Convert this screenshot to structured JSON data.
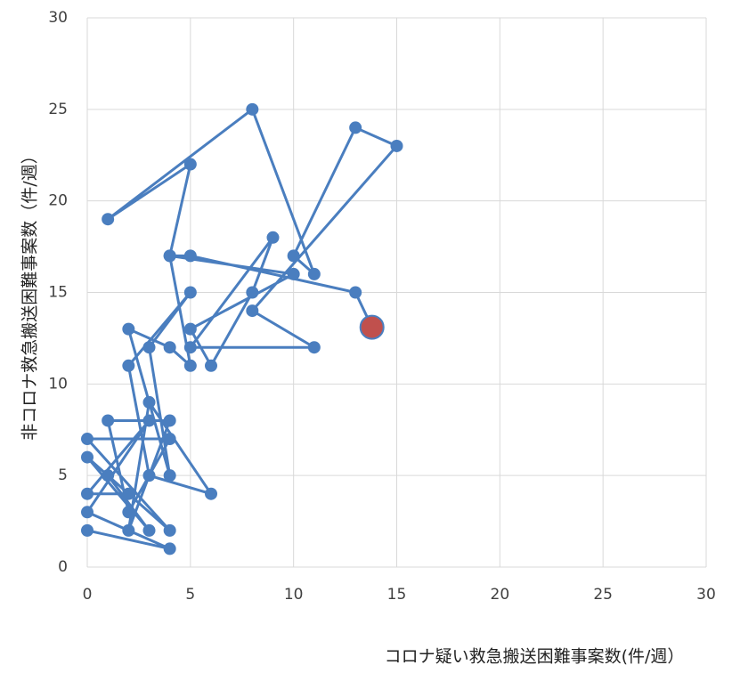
{
  "chart_data": {
    "type": "scatter-line",
    "x_label": "コロナ疑い救急搬送困難事案数(件/週）",
    "y_label": "非コロナ救急搬送困難事案数（件/週）",
    "xlim": [
      0,
      30
    ],
    "xticks": [
      0,
      5,
      10,
      15,
      20,
      25,
      30
    ],
    "ylim": [
      0,
      30
    ],
    "yticks": [
      0,
      5,
      10,
      15,
      20,
      25,
      30
    ],
    "grid": true,
    "color": "#4a7ebf",
    "last_point_color": "#c0504d",
    "x": [
      0,
      4,
      0,
      3,
      0,
      2,
      0,
      3,
      1,
      4,
      0,
      4,
      2,
      1,
      4,
      2,
      3,
      6,
      3,
      2,
      5,
      3,
      4,
      2,
      4,
      5,
      4,
      5,
      1,
      8,
      11,
      10,
      13,
      15,
      8,
      11,
      5,
      9,
      8,
      6,
      5,
      10,
      4,
      5,
      13,
      13.8
    ],
    "y": [
      2,
      1,
      3,
      8,
      4,
      4,
      6,
      2,
      5,
      2,
      7,
      7,
      3,
      8,
      8,
      2,
      9,
      4,
      5,
      11,
      15,
      12,
      5,
      13,
      12,
      11,
      17,
      22,
      19,
      25,
      16,
      17,
      24,
      23,
      14,
      12,
      12,
      18,
      15,
      11,
      13,
      16,
      17,
      17,
      15,
      13.1
    ]
  }
}
